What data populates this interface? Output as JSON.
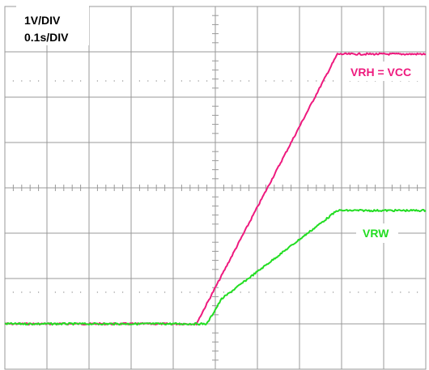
{
  "chart_data": {
    "type": "line",
    "scale": {
      "vertical": "1V/DIV",
      "horizontal": "0.1s/DIV"
    },
    "divisions": {
      "x": 10,
      "y": 8
    },
    "grid": true,
    "xlim": [
      0,
      10
    ],
    "ylim": [
      0,
      8
    ],
    "colors": {
      "VRH": "#ee1a7e",
      "VRW": "#22dd22",
      "grid": "#999999"
    },
    "series": [
      {
        "name": "VRH = VCC",
        "color": "#ee1a7e",
        "points": [
          [
            0,
            1.0
          ],
          [
            4.55,
            1.0
          ],
          [
            7.9,
            6.95
          ],
          [
            10,
            6.95
          ]
        ]
      },
      {
        "name": "VRW",
        "color": "#22dd22",
        "points": [
          [
            0,
            1.0
          ],
          [
            4.8,
            1.0
          ],
          [
            5.15,
            1.55
          ],
          [
            7.9,
            3.5
          ],
          [
            10,
            3.5
          ]
        ]
      }
    ],
    "labels": [
      {
        "series": "VRH = VCC",
        "text": "VRH = VCC"
      },
      {
        "series": "VRW",
        "text": "VRW"
      }
    ]
  }
}
